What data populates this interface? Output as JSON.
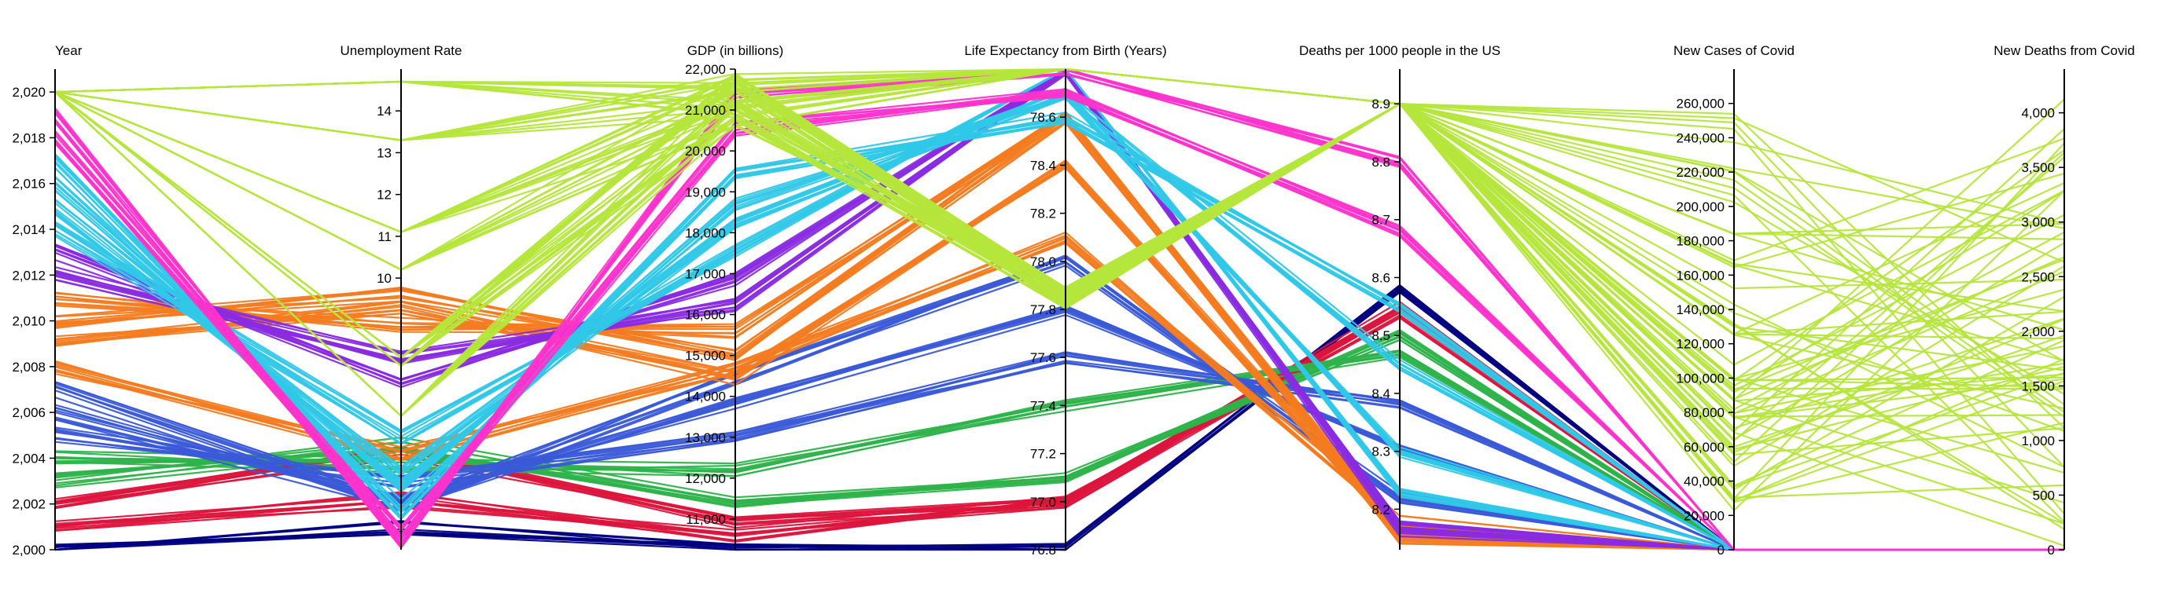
{
  "chart_data": {
    "type": "parallel-coordinates",
    "axes": [
      {
        "key": "year",
        "label": "Year",
        "range": [
          2000,
          2021
        ],
        "ticks": [
          "2,000",
          "2,002",
          "2,004",
          "2,006",
          "2,008",
          "2,010",
          "2,012",
          "2,014",
          "2,016",
          "2,018",
          "2,020"
        ],
        "tick_values": [
          2000,
          2002,
          2004,
          2006,
          2008,
          2010,
          2012,
          2014,
          2016,
          2018,
          2020
        ],
        "tick_side": "left"
      },
      {
        "key": "unemployment",
        "label": "Unemployment Rate",
        "range": [
          3.5,
          15
        ],
        "ticks": [
          "10",
          "11",
          "12",
          "13",
          "14"
        ],
        "tick_values": [
          10,
          11,
          12,
          13,
          14
        ],
        "tick_side": "left"
      },
      {
        "key": "gdp",
        "label": "GDP (in billions)",
        "range": [
          10250,
          22000
        ],
        "ticks": [
          "11,000",
          "12,000",
          "13,000",
          "14,000",
          "15,000",
          "16,000",
          "17,000",
          "18,000",
          "19,000",
          "20,000",
          "21,000",
          "22,000"
        ],
        "tick_values": [
          11000,
          12000,
          13000,
          14000,
          15000,
          16000,
          17000,
          18000,
          19000,
          20000,
          21000,
          22000
        ],
        "tick_side": "left"
      },
      {
        "key": "life",
        "label": "Life Expectancy from Birth (Years)",
        "range": [
          76.8,
          78.8
        ],
        "ticks": [
          "76.8",
          "77.0",
          "77.2",
          "77.4",
          "77.6",
          "77.8",
          "78.0",
          "78.2",
          "78.4",
          "78.6"
        ],
        "tick_values": [
          76.8,
          77.0,
          77.2,
          77.4,
          77.6,
          77.8,
          78.0,
          78.2,
          78.4,
          78.6
        ],
        "tick_side": "left"
      },
      {
        "key": "deaths",
        "label": "Deaths per 1000 people in the US",
        "range": [
          8.13,
          8.96
        ],
        "ticks": [
          "8.2",
          "8.3",
          "8.4",
          "8.5",
          "8.6",
          "8.7",
          "8.8",
          "8.9"
        ],
        "tick_values": [
          8.2,
          8.3,
          8.4,
          8.5,
          8.6,
          8.7,
          8.8,
          8.9
        ],
        "tick_side": "left"
      },
      {
        "key": "cases",
        "label": "New Cases of Covid",
        "range": [
          0,
          280000
        ],
        "ticks": [
          "0",
          "20,000",
          "40,000",
          "60,000",
          "80,000",
          "100,000",
          "120,000",
          "140,000",
          "160,000",
          "180,000",
          "200,000",
          "220,000",
          "240,000",
          "260,000"
        ],
        "tick_values": [
          0,
          20000,
          40000,
          60000,
          80000,
          100000,
          120000,
          140000,
          160000,
          180000,
          200000,
          220000,
          240000,
          260000
        ],
        "tick_side": "left"
      },
      {
        "key": "covid_deaths",
        "label": "New Deaths from Covid",
        "range": [
          0,
          4400
        ],
        "ticks": [
          "0",
          "500",
          "1,000",
          "1,500",
          "2,000",
          "2,500",
          "3,000",
          "3,500",
          "4,000"
        ],
        "tick_values": [
          0,
          500,
          1000,
          1500,
          2000,
          2500,
          3000,
          3500,
          4000
        ],
        "tick_side": "left"
      }
    ],
    "year_profiles": [
      {
        "year": 2000,
        "color": "#00007f",
        "unemployment": 4.0,
        "gdp": 10250,
        "life": 76.8,
        "deaths": 8.58,
        "cases": 0,
        "covid_deaths": 0
      },
      {
        "year": 2001,
        "color": "#dc143c",
        "unemployment": 4.7,
        "gdp": 10580,
        "life": 77.0,
        "deaths": 8.55,
        "cases": 0,
        "covid_deaths": 0
      },
      {
        "year": 2002,
        "color": "#dc143c",
        "unemployment": 5.8,
        "gdp": 10930,
        "life": 77.0,
        "deaths": 8.54,
        "cases": 0,
        "covid_deaths": 0
      },
      {
        "year": 2003,
        "color": "#2db34a",
        "unemployment": 6.0,
        "gdp": 11460,
        "life": 77.1,
        "deaths": 8.5,
        "cases": 0,
        "covid_deaths": 0
      },
      {
        "year": 2004,
        "color": "#2db34a",
        "unemployment": 5.5,
        "gdp": 12210,
        "life": 77.4,
        "deaths": 8.47,
        "cases": 0,
        "covid_deaths": 0
      },
      {
        "year": 2005,
        "color": "#3a5ad8",
        "unemployment": 5.1,
        "gdp": 13040,
        "life": 77.6,
        "deaths": 8.38,
        "cases": 0,
        "covid_deaths": 0
      },
      {
        "year": 2006,
        "color": "#3a5ad8",
        "unemployment": 4.6,
        "gdp": 13810,
        "life": 77.8,
        "deaths": 8.31,
        "cases": 0,
        "covid_deaths": 0
      },
      {
        "year": 2007,
        "color": "#3a5ad8",
        "unemployment": 4.6,
        "gdp": 14450,
        "life": 78.0,
        "deaths": 8.22,
        "cases": 0,
        "covid_deaths": 0
      },
      {
        "year": 2008,
        "color": "#f47b20",
        "unemployment": 5.8,
        "gdp": 14710,
        "life": 78.1,
        "deaths": 8.18,
        "cases": 0,
        "covid_deaths": 0
      },
      {
        "year": 2009,
        "color": "#f47b20",
        "unemployment": 9.3,
        "gdp": 14450,
        "life": 78.4,
        "deaths": 8.16,
        "cases": 0,
        "covid_deaths": 0
      },
      {
        "year": 2010,
        "color": "#f47b20",
        "unemployment": 9.6,
        "gdp": 15050,
        "life": 78.6,
        "deaths": 8.16,
        "cases": 0,
        "covid_deaths": 0
      },
      {
        "year": 2011,
        "color": "#f47b20",
        "unemployment": 8.9,
        "gdp": 15600,
        "life": 78.6,
        "deaths": 8.15,
        "cases": 0,
        "covid_deaths": 0
      },
      {
        "year": 2012,
        "color": "#8a2be2",
        "unemployment": 8.1,
        "gdp": 16250,
        "life": 78.8,
        "deaths": 8.16,
        "cases": 0,
        "covid_deaths": 0
      },
      {
        "year": 2013,
        "color": "#8a2be2",
        "unemployment": 7.4,
        "gdp": 16840,
        "life": 78.8,
        "deaths": 8.17,
        "cases": 0,
        "covid_deaths": 0
      },
      {
        "year": 2014,
        "color": "#30c8e8",
        "unemployment": 6.2,
        "gdp": 17550,
        "life": 78.9,
        "deaths": 8.23,
        "cases": 0,
        "covid_deaths": 0
      },
      {
        "year": 2015,
        "color": "#30c8e8",
        "unemployment": 5.3,
        "gdp": 18210,
        "life": 78.7,
        "deaths": 8.3,
        "cases": 0,
        "covid_deaths": 0
      },
      {
        "year": 2016,
        "color": "#30c8e8",
        "unemployment": 4.9,
        "gdp": 18700,
        "life": 78.7,
        "deaths": 8.45,
        "cases": 0,
        "covid_deaths": 0
      },
      {
        "year": 2017,
        "color": "#30c8e8",
        "unemployment": 4.4,
        "gdp": 19480,
        "life": 78.6,
        "deaths": 8.55,
        "cases": 0,
        "covid_deaths": 0
      },
      {
        "year": 2018,
        "color": "#ff33cc",
        "unemployment": 3.9,
        "gdp": 20530,
        "life": 78.7,
        "deaths": 8.68,
        "cases": 0,
        "covid_deaths": 0
      },
      {
        "year": 2019,
        "color": "#ff33cc",
        "unemployment": 3.7,
        "gdp": 21380,
        "life": 78.8,
        "deaths": 8.8,
        "cases": 0,
        "covid_deaths": 0
      },
      {
        "year": 2020,
        "color": "#b5e63b",
        "unemployment": 8.1,
        "gdp": 20890,
        "life": 77.8,
        "deaths": 8.9,
        "cases": 100000,
        "covid_deaths": 1000
      }
    ]
  }
}
